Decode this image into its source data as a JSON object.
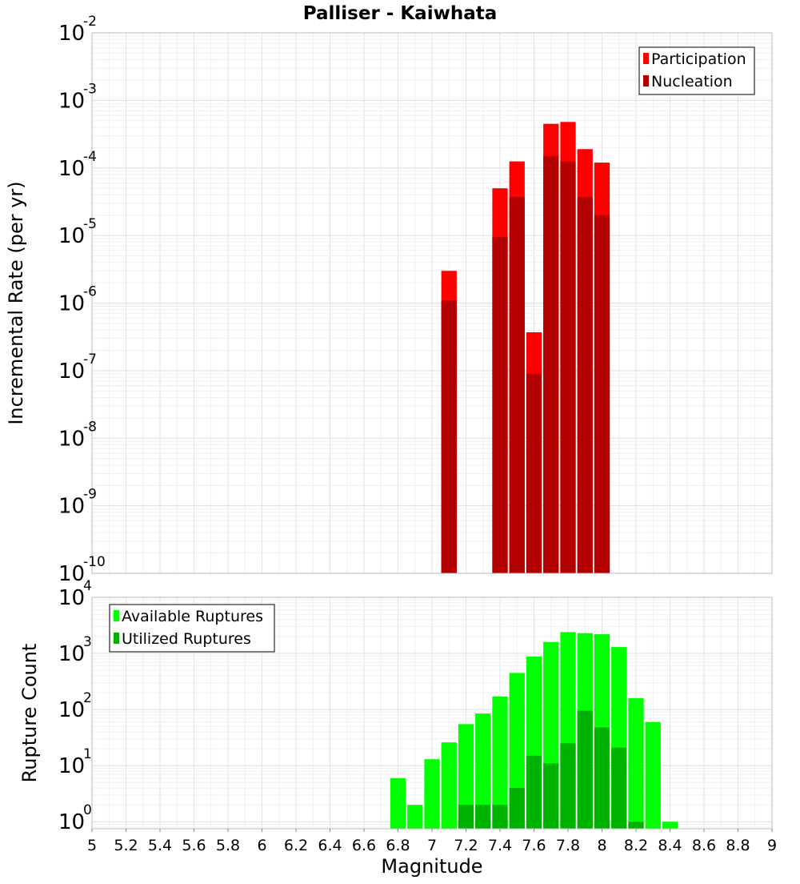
{
  "title": "Palliser - Kaiwhata",
  "chart_data": [
    {
      "type": "bar",
      "name": "incremental-rate",
      "ylabel": "Incremental Rate (per yr)",
      "yscale": "log",
      "ylim": [
        1e-10,
        0.01
      ],
      "xlim": [
        5,
        9
      ],
      "bin_width": 0.1,
      "grid": true,
      "legend_position": "top-right",
      "ytick_exponents": [
        -10,
        -9,
        -8,
        -7,
        -6,
        -5,
        -4,
        -3,
        -2
      ],
      "ytick_base": "10",
      "series": [
        {
          "name": "Participation",
          "color": "#ff0000",
          "x": [
            7.1,
            7.4,
            7.5,
            7.6,
            7.7,
            7.8,
            7.9,
            8.0
          ],
          "values": [
            3e-06,
            5e-05,
            0.000125,
            3.7e-07,
            0.00045,
            0.00048,
            0.00019,
            0.00012
          ]
        },
        {
          "name": "Nucleation",
          "color": "#b20000",
          "x": [
            7.1,
            7.4,
            7.5,
            7.6,
            7.7,
            7.8,
            7.9,
            8.0
          ],
          "values": [
            1.1e-06,
            9.5e-06,
            3.7e-05,
            9e-08,
            0.00015,
            0.000125,
            3.7e-05,
            2e-05
          ]
        }
      ]
    },
    {
      "type": "bar",
      "name": "rupture-count",
      "xlabel": "Magnitude",
      "ylabel": "Rupture Count",
      "yscale": "log",
      "ylim": [
        0.75,
        10000.0
      ],
      "xlim": [
        5,
        9
      ],
      "bin_width": 0.1,
      "grid": true,
      "legend_position": "top-left",
      "ytick_exponents": [
        0,
        1,
        2,
        3,
        4
      ],
      "ytick_base": "10",
      "xticks": [
        "5",
        "5.2",
        "5.4",
        "5.6",
        "5.8",
        "6",
        "6.2",
        "6.4",
        "6.6",
        "6.8",
        "7",
        "7.2",
        "7.4",
        "7.6",
        "7.8",
        "8",
        "8.2",
        "8.4",
        "8.6",
        "8.8",
        "9"
      ],
      "series": [
        {
          "name": "Available Ruptures",
          "color": "#00ff00",
          "x": [
            6.8,
            6.9,
            7.0,
            7.1,
            7.2,
            7.3,
            7.4,
            7.5,
            7.6,
            7.7,
            7.8,
            7.9,
            8.0,
            8.1,
            8.2,
            8.3,
            8.4
          ],
          "values": [
            6,
            2,
            13,
            26,
            55,
            85,
            170,
            450,
            880,
            1600,
            2400,
            2300,
            2200,
            1300,
            160,
            60,
            1
          ]
        },
        {
          "name": "Utilized Ruptures",
          "color": "#00b200",
          "x": [
            7.2,
            7.3,
            7.4,
            7.5,
            7.6,
            7.7,
            7.8,
            7.9,
            8.0,
            8.1,
            8.2
          ],
          "values": [
            2,
            2,
            2,
            4,
            15,
            11,
            25,
            95,
            48,
            21,
            1
          ]
        }
      ]
    }
  ]
}
